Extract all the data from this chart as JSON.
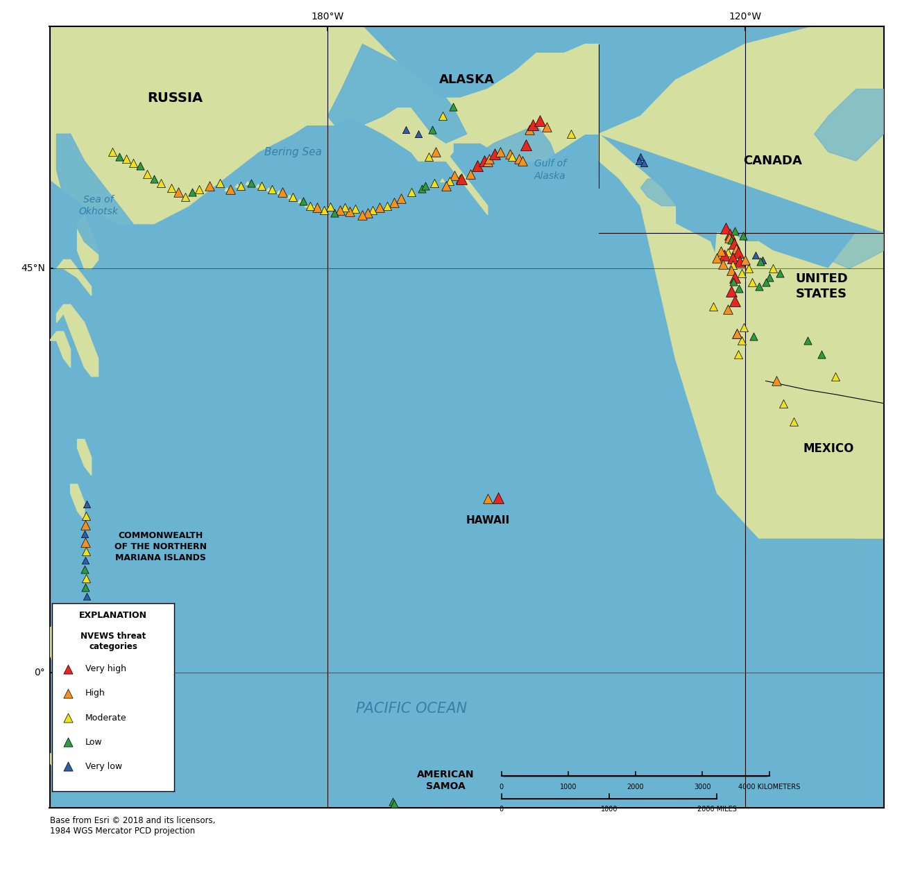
{
  "figsize": [
    13.0,
    12.59
  ],
  "dpi": 100,
  "lon_min": -220,
  "lon_max": -100,
  "lat_min": -15,
  "lat_max": 72,
  "ocean_color": "#6ab4d2",
  "land_color": "#d4dfa0",
  "land_color2": "#c5d48a",
  "river_color": "#7bbfda",
  "border_color": "#888844",
  "threat_colors": {
    "very_high": "#e8251e",
    "high": "#f5921e",
    "moderate": "#efe01a",
    "low": "#2e9b3e",
    "very_low": "#2e5fa8"
  },
  "source_text": "Base from Esri © 2018 and its licensors,\n1984 WGS Mercator PCD projection",
  "volcanoes": [
    {
      "lon": -164.7,
      "lat": 54.5,
      "threat": "moderate"
    },
    {
      "lon": -166.5,
      "lat": 53.9,
      "threat": "low"
    },
    {
      "lon": -168.0,
      "lat": 53.5,
      "threat": "moderate"
    },
    {
      "lon": -169.5,
      "lat": 52.8,
      "threat": "high"
    },
    {
      "lon": -170.5,
      "lat": 52.4,
      "threat": "high"
    },
    {
      "lon": -171.5,
      "lat": 52.0,
      "threat": "moderate"
    },
    {
      "lon": -172.5,
      "lat": 51.8,
      "threat": "high"
    },
    {
      "lon": -173.5,
      "lat": 51.5,
      "threat": "moderate"
    },
    {
      "lon": -174.2,
      "lat": 51.2,
      "threat": "high"
    },
    {
      "lon": -175.0,
      "lat": 51.0,
      "threat": "high"
    },
    {
      "lon": -176.0,
      "lat": 51.7,
      "threat": "moderate"
    },
    {
      "lon": -176.8,
      "lat": 51.4,
      "threat": "high"
    },
    {
      "lon": -177.5,
      "lat": 51.8,
      "threat": "moderate"
    },
    {
      "lon": -178.2,
      "lat": 51.5,
      "threat": "high"
    },
    {
      "lon": -179.0,
      "lat": 51.2,
      "threat": "low"
    },
    {
      "lon": -179.6,
      "lat": 51.9,
      "threat": "moderate"
    },
    {
      "lon": -180.5,
      "lat": 51.5,
      "threat": "moderate"
    },
    {
      "lon": -181.5,
      "lat": 51.8,
      "threat": "high"
    },
    {
      "lon": -182.5,
      "lat": 52.0,
      "threat": "moderate"
    },
    {
      "lon": -183.5,
      "lat": 52.5,
      "threat": "low"
    },
    {
      "lon": -185.0,
      "lat": 53.0,
      "threat": "moderate"
    },
    {
      "lon": -186.5,
      "lat": 53.5,
      "threat": "high"
    },
    {
      "lon": -188.0,
      "lat": 53.8,
      "threat": "moderate"
    },
    {
      "lon": -189.5,
      "lat": 54.2,
      "threat": "moderate"
    },
    {
      "lon": -191.0,
      "lat": 54.5,
      "threat": "low"
    },
    {
      "lon": -192.5,
      "lat": 54.2,
      "threat": "moderate"
    },
    {
      "lon": -194.0,
      "lat": 53.8,
      "threat": "high"
    },
    {
      "lon": -195.5,
      "lat": 54.5,
      "threat": "moderate"
    },
    {
      "lon": -197.0,
      "lat": 54.2,
      "threat": "high"
    },
    {
      "lon": -198.5,
      "lat": 53.8,
      "threat": "moderate"
    },
    {
      "lon": -199.5,
      "lat": 53.5,
      "threat": "low"
    },
    {
      "lon": -200.5,
      "lat": 53.0,
      "threat": "moderate"
    },
    {
      "lon": -201.5,
      "lat": 53.5,
      "threat": "high"
    },
    {
      "lon": -202.5,
      "lat": 54.0,
      "threat": "moderate"
    },
    {
      "lon": -204.0,
      "lat": 54.5,
      "threat": "moderate"
    },
    {
      "lon": -205.0,
      "lat": 55.0,
      "threat": "low"
    },
    {
      "lon": -206.0,
      "lat": 55.5,
      "threat": "moderate"
    },
    {
      "lon": -207.0,
      "lat": 56.5,
      "threat": "low"
    },
    {
      "lon": -208.0,
      "lat": 56.8,
      "threat": "moderate"
    },
    {
      "lon": -209.0,
      "lat": 57.2,
      "threat": "moderate"
    },
    {
      "lon": -210.0,
      "lat": 57.5,
      "threat": "low"
    },
    {
      "lon": -211.0,
      "lat": 58.0,
      "threat": "moderate"
    },
    {
      "lon": -161.0,
      "lat": 55.0,
      "threat": "moderate"
    },
    {
      "lon": -161.8,
      "lat": 55.4,
      "threat": "high"
    },
    {
      "lon": -162.5,
      "lat": 54.8,
      "threat": "moderate"
    },
    {
      "lon": -163.0,
      "lat": 54.2,
      "threat": "high"
    },
    {
      "lon": -166.0,
      "lat": 54.2,
      "threat": "low"
    },
    {
      "lon": -165.5,
      "lat": 57.5,
      "threat": "moderate"
    },
    {
      "lon": -164.5,
      "lat": 58.0,
      "threat": "high"
    },
    {
      "lon": -159.5,
      "lat": 55.5,
      "threat": "high"
    },
    {
      "lon": -160.8,
      "lat": 55.0,
      "threat": "very_high"
    },
    {
      "lon": -158.5,
      "lat": 56.5,
      "threat": "very_high"
    },
    {
      "lon": -157.5,
      "lat": 57.0,
      "threat": "very_high"
    },
    {
      "lon": -157.0,
      "lat": 56.9,
      "threat": "high"
    },
    {
      "lon": -156.8,
      "lat": 57.2,
      "threat": "high"
    },
    {
      "lon": -156.0,
      "lat": 57.8,
      "threat": "very_high"
    },
    {
      "lon": -155.2,
      "lat": 58.0,
      "threat": "high"
    },
    {
      "lon": -153.8,
      "lat": 57.8,
      "threat": "high"
    },
    {
      "lon": -153.5,
      "lat": 57.5,
      "threat": "moderate"
    },
    {
      "lon": -152.5,
      "lat": 57.2,
      "threat": "high"
    },
    {
      "lon": -152.0,
      "lat": 57.0,
      "threat": "high"
    },
    {
      "lon": -151.5,
      "lat": 58.8,
      "threat": "very_high"
    },
    {
      "lon": -151.0,
      "lat": 60.5,
      "threat": "high"
    },
    {
      "lon": -150.5,
      "lat": 61.0,
      "threat": "very_high"
    },
    {
      "lon": -149.5,
      "lat": 61.5,
      "threat": "very_high"
    },
    {
      "lon": -148.5,
      "lat": 60.8,
      "threat": "high"
    },
    {
      "lon": -145.0,
      "lat": 60.0,
      "threat": "moderate"
    },
    {
      "lon": -168.8,
      "lat": 60.5,
      "threat": "very_low"
    },
    {
      "lon": -167.0,
      "lat": 60.0,
      "threat": "very_low"
    },
    {
      "lon": -165.0,
      "lat": 60.5,
      "threat": "low"
    },
    {
      "lon": -163.5,
      "lat": 62.0,
      "threat": "moderate"
    },
    {
      "lon": -162.0,
      "lat": 63.0,
      "threat": "low"
    },
    {
      "lon": -135.0,
      "lat": 57.5,
      "threat": "very_low"
    },
    {
      "lon": -135.2,
      "lat": 57.0,
      "threat": "very_low"
    },
    {
      "lon": -134.5,
      "lat": 56.8,
      "threat": "very_low"
    },
    {
      "lon": -122.8,
      "lat": 49.5,
      "threat": "very_high"
    },
    {
      "lon": -122.2,
      "lat": 48.8,
      "threat": "very_high"
    },
    {
      "lon": -122.3,
      "lat": 48.4,
      "threat": "high"
    },
    {
      "lon": -121.5,
      "lat": 49.2,
      "threat": "low"
    },
    {
      "lon": -122.0,
      "lat": 48.2,
      "threat": "low"
    },
    {
      "lon": -120.3,
      "lat": 48.7,
      "threat": "low"
    },
    {
      "lon": -121.6,
      "lat": 47.8,
      "threat": "very_high"
    },
    {
      "lon": -121.3,
      "lat": 47.2,
      "threat": "high"
    },
    {
      "lon": -121.0,
      "lat": 46.8,
      "threat": "very_high"
    },
    {
      "lon": -122.5,
      "lat": 46.8,
      "threat": "moderate"
    },
    {
      "lon": -123.0,
      "lat": 46.5,
      "threat": "very_high"
    },
    {
      "lon": -123.5,
      "lat": 47.0,
      "threat": "high"
    },
    {
      "lon": -121.8,
      "lat": 46.2,
      "threat": "very_high"
    },
    {
      "lon": -120.8,
      "lat": 45.8,
      "threat": "very_high"
    },
    {
      "lon": -121.8,
      "lat": 45.4,
      "threat": "moderate"
    },
    {
      "lon": -123.2,
      "lat": 45.5,
      "threat": "high"
    },
    {
      "lon": -124.0,
      "lat": 46.2,
      "threat": "high"
    },
    {
      "lon": -118.5,
      "lat": 46.5,
      "threat": "very_low"
    },
    {
      "lon": -117.5,
      "lat": 46.0,
      "threat": "very_low"
    },
    {
      "lon": -120.0,
      "lat": 46.0,
      "threat": "high"
    },
    {
      "lon": -122.0,
      "lat": 44.8,
      "threat": "high"
    },
    {
      "lon": -121.5,
      "lat": 44.0,
      "threat": "very_high"
    },
    {
      "lon": -121.7,
      "lat": 43.6,
      "threat": "low"
    },
    {
      "lon": -120.9,
      "lat": 42.8,
      "threat": "low"
    },
    {
      "lon": -122.0,
      "lat": 42.5,
      "threat": "very_high"
    },
    {
      "lon": -121.5,
      "lat": 41.4,
      "threat": "very_high"
    },
    {
      "lon": -122.5,
      "lat": 40.5,
      "threat": "high"
    },
    {
      "lon": -124.5,
      "lat": 40.8,
      "threat": "moderate"
    },
    {
      "lon": -121.2,
      "lat": 37.8,
      "threat": "high"
    },
    {
      "lon": -120.2,
      "lat": 38.5,
      "threat": "moderate"
    },
    {
      "lon": -120.5,
      "lat": 37.0,
      "threat": "moderate"
    },
    {
      "lon": -118.8,
      "lat": 37.5,
      "threat": "low"
    },
    {
      "lon": -116.5,
      "lat": 44.0,
      "threat": "low"
    },
    {
      "lon": -117.0,
      "lat": 43.5,
      "threat": "low"
    },
    {
      "lon": -118.0,
      "lat": 43.0,
      "threat": "low"
    },
    {
      "lon": -119.0,
      "lat": 43.5,
      "threat": "moderate"
    },
    {
      "lon": -120.5,
      "lat": 44.5,
      "threat": "moderate"
    },
    {
      "lon": -115.0,
      "lat": 44.5,
      "threat": "low"
    },
    {
      "lon": -116.0,
      "lat": 45.0,
      "threat": "moderate"
    },
    {
      "lon": -117.8,
      "lat": 45.8,
      "threat": "low"
    },
    {
      "lon": -119.5,
      "lat": 45.0,
      "threat": "moderate"
    },
    {
      "lon": -121.0,
      "lat": 35.5,
      "threat": "moderate"
    },
    {
      "lon": -121.2,
      "lat": 37.8,
      "threat": "high"
    },
    {
      "lon": -111.0,
      "lat": 37.0,
      "threat": "low"
    },
    {
      "lon": -109.0,
      "lat": 35.5,
      "threat": "low"
    },
    {
      "lon": -107.0,
      "lat": 33.0,
      "threat": "moderate"
    },
    {
      "lon": -115.5,
      "lat": 32.5,
      "threat": "high"
    },
    {
      "lon": -114.5,
      "lat": 30.0,
      "threat": "moderate"
    },
    {
      "lon": -113.0,
      "lat": 28.0,
      "threat": "moderate"
    },
    {
      "lon": -155.5,
      "lat": 19.5,
      "threat": "very_high"
    },
    {
      "lon": -157.0,
      "lat": 19.4,
      "threat": "high"
    },
    {
      "lon": -214.7,
      "lat": 18.8,
      "threat": "very_low"
    },
    {
      "lon": -214.8,
      "lat": 17.5,
      "threat": "moderate"
    },
    {
      "lon": -214.9,
      "lat": 16.5,
      "threat": "high"
    },
    {
      "lon": -215.0,
      "lat": 15.5,
      "threat": "very_low"
    },
    {
      "lon": -214.9,
      "lat": 14.5,
      "threat": "high"
    },
    {
      "lon": -214.8,
      "lat": 13.5,
      "threat": "moderate"
    },
    {
      "lon": -214.9,
      "lat": 12.5,
      "threat": "very_low"
    },
    {
      "lon": -215.0,
      "lat": 11.5,
      "threat": "low"
    },
    {
      "lon": -214.8,
      "lat": 10.5,
      "threat": "moderate"
    },
    {
      "lon": -214.9,
      "lat": 9.5,
      "threat": "low"
    },
    {
      "lon": -214.7,
      "lat": 8.5,
      "threat": "very_low"
    },
    {
      "lon": -170.7,
      "lat": -14.3,
      "threat": "low"
    },
    {
      "lon": -170.5,
      "lat": -14.6,
      "threat": "low"
    }
  ]
}
